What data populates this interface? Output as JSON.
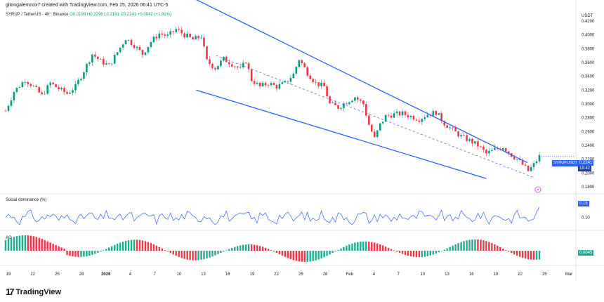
{
  "header": {
    "created_by": "gitongalemnox7 created with TradingView.com, Feb 25, 2026 06:41 UTC-5",
    "symbol_line": "SYRUP / TetherUS · 4h · Binance",
    "ohlc": "O0.2199 H0.2296 L0.2191 C0.2241 +0.0042 (+1.91%)"
  },
  "branding": {
    "logo_text": "TradingView",
    "logo_icon": "tradingview-logo-icon"
  },
  "price_pane": {
    "unit": "USDT",
    "symbol_tag": "SYRUPUSDT",
    "last_price": "0.2241",
    "countdown": "18:42",
    "last_price_color": "#2962ff",
    "up_color": "#089981",
    "down_color": "#f23645",
    "alert_icon": "lightning-alert-icon"
  },
  "social_pane": {
    "label": "Social dominance (%)",
    "value": "0.15",
    "line_color": "#2962ff"
  },
  "ao_pane": {
    "label": "AO",
    "value": "0.0045"
  },
  "chart_data": {
    "type": "candlestick",
    "y_axis": {
      "ticks": [
        "0.4200",
        "0.4000",
        "0.3800",
        "0.3600",
        "0.3400",
        "0.3200",
        "0.3000",
        "0.2800",
        "0.2600",
        "0.2400",
        "0.2200",
        "0.2000",
        "0.1800"
      ],
      "ylim": [
        0.178,
        0.424
      ]
    },
    "x_axis": {
      "ticks": [
        "19",
        "22",
        "25",
        "28",
        "2026",
        "4",
        "7",
        "10",
        "13",
        "16",
        "19",
        "22",
        "25",
        "28",
        "Feb",
        "4",
        "7",
        "10",
        "13",
        "16",
        "19",
        "22",
        "25",
        "Mar"
      ]
    },
    "price_path": [
      [
        0,
        0.29
      ],
      [
        3,
        0.318
      ],
      [
        7,
        0.335
      ],
      [
        10,
        0.325
      ],
      [
        13,
        0.312
      ],
      [
        16,
        0.33
      ],
      [
        19,
        0.322
      ],
      [
        22,
        0.315
      ],
      [
        25,
        0.325
      ],
      [
        28,
        0.348
      ],
      [
        31,
        0.372
      ],
      [
        34,
        0.362
      ],
      [
        37,
        0.355
      ],
      [
        40,
        0.375
      ],
      [
        43,
        0.395
      ],
      [
        46,
        0.385
      ],
      [
        49,
        0.372
      ],
      [
        52,
        0.39
      ],
      [
        55,
        0.402
      ],
      [
        58,
        0.398
      ],
      [
        61,
        0.408
      ],
      [
        64,
        0.4
      ],
      [
        67,
        0.393
      ],
      [
        70,
        0.398
      ],
      [
        72,
        0.362
      ],
      [
        75,
        0.352
      ],
      [
        78,
        0.365
      ],
      [
        81,
        0.358
      ],
      [
        84,
        0.35
      ],
      [
        86,
        0.362
      ],
      [
        88,
        0.335
      ],
      [
        91,
        0.325
      ],
      [
        94,
        0.33
      ],
      [
        97,
        0.325
      ],
      [
        100,
        0.33
      ],
      [
        103,
        0.343
      ],
      [
        105,
        0.365
      ],
      [
        108,
        0.345
      ],
      [
        111,
        0.33
      ],
      [
        114,
        0.325
      ],
      [
        116,
        0.3
      ],
      [
        119,
        0.295
      ],
      [
        122,
        0.303
      ],
      [
        125,
        0.31
      ],
      [
        128,
        0.3
      ],
      [
        130,
        0.27
      ],
      [
        132,
        0.25
      ],
      [
        134,
        0.27
      ],
      [
        136,
        0.282
      ],
      [
        139,
        0.285
      ],
      [
        142,
        0.286
      ],
      [
        145,
        0.282
      ],
      [
        148,
        0.278
      ],
      [
        151,
        0.285
      ],
      [
        154,
        0.288
      ],
      [
        157,
        0.272
      ],
      [
        160,
        0.262
      ],
      [
        163,
        0.253
      ],
      [
        166,
        0.247
      ],
      [
        169,
        0.24
      ],
      [
        172,
        0.228
      ],
      [
        175,
        0.234
      ],
      [
        178,
        0.238
      ],
      [
        181,
        0.226
      ],
      [
        183,
        0.22
      ],
      [
        185,
        0.212
      ],
      [
        187,
        0.203
      ],
      [
        189,
        0.212
      ],
      [
        191,
        0.224
      ]
    ],
    "channel": {
      "upper": [
        [
          0.325,
          0.455
        ],
        [
          0.917,
          0.215
        ]
      ],
      "lower": [
        [
          0.335,
          0.32
        ],
        [
          0.845,
          0.192
        ]
      ],
      "mid": [
        [
          0.37,
          0.37
        ],
        [
          0.93,
          0.193
        ]
      ],
      "color": "#2962ff"
    },
    "social_dominance": {
      "range": [
        0.05,
        0.2
      ],
      "ticks": [
        "0.10"
      ],
      "last": 0.15
    },
    "ao": {
      "last": 0.0045
    },
    "grid": false
  }
}
